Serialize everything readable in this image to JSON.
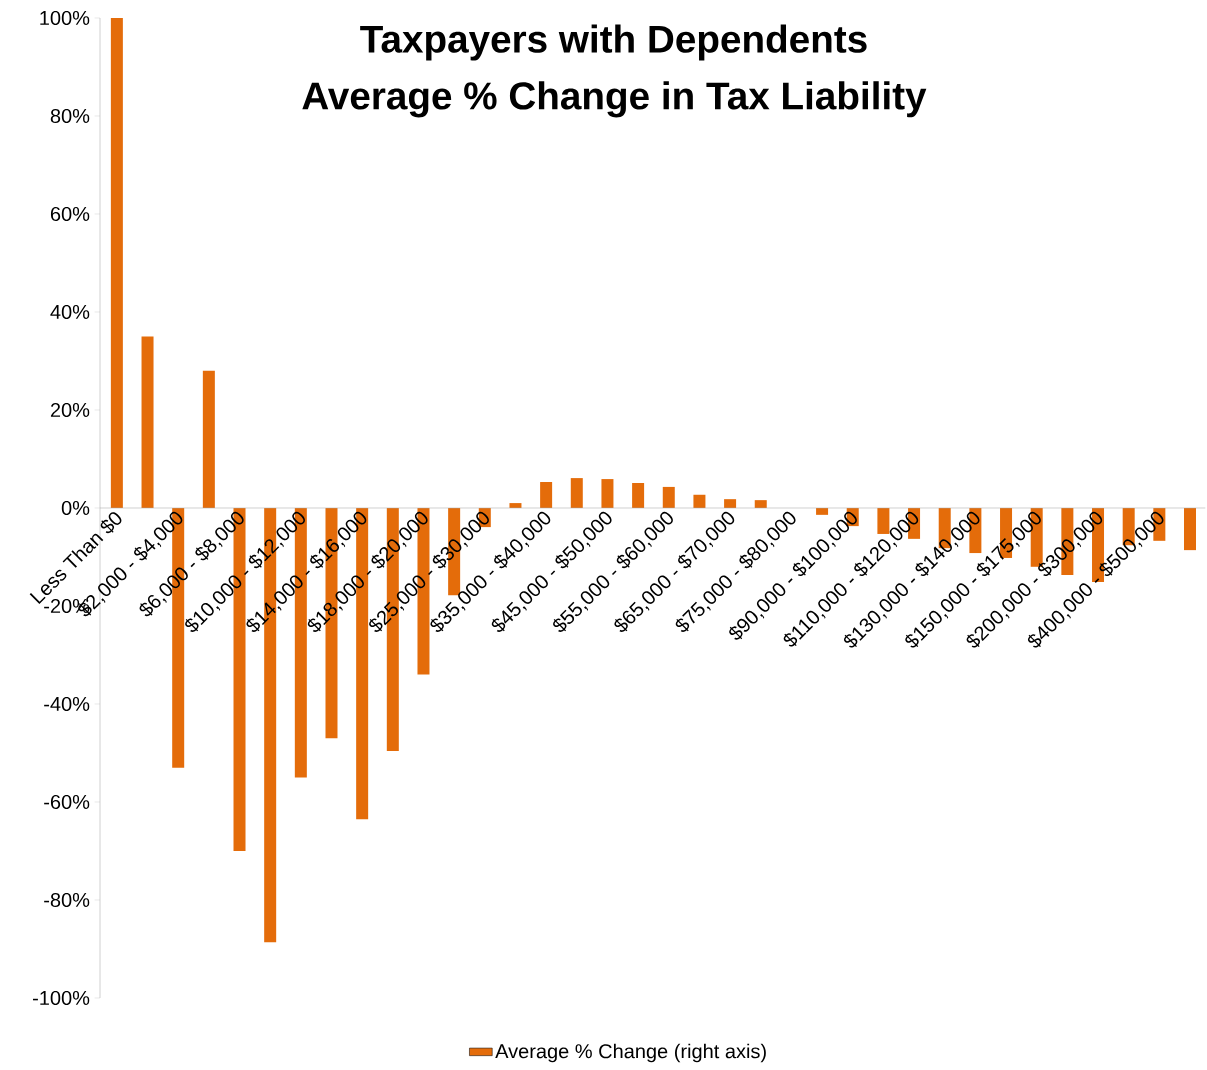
{
  "chart_data": {
    "type": "bar",
    "title": "Taxpayers with Dependents",
    "subtitle": "Average % Change in Tax Liability",
    "categories": [
      "Less Than $0",
      null,
      "$2,000 - $4,000",
      null,
      "$6,000 - $8,000",
      null,
      "$10,000 - $12,000",
      null,
      "$14,000 - $16,000",
      null,
      "$18,000 - $20,000",
      null,
      "$25,000 - $30,000",
      null,
      "$35,000 - $40,000",
      null,
      "$45,000 - $50,000",
      null,
      "$55,000 - $60,000",
      null,
      "$65,000 - $70,000",
      null,
      "$75,000 - $80,000",
      null,
      "$90,000 - $100,000",
      null,
      "$110,000 - $120,000",
      null,
      "$130,000 - $140,000",
      null,
      "$150,000 - $175,000",
      null,
      "$200,000 - $300,000",
      null,
      "$400,000 - $500,000",
      null
    ],
    "series": [
      {
        "name": "Average % Change (right axis)",
        "color": "#e46c0a",
        "values": [
          100,
          35,
          -53,
          28,
          -70,
          -88.6,
          -55,
          -47,
          -63.5,
          -49.6,
          -34,
          -17.8,
          -3.9,
          1,
          5.3,
          6.1,
          5.9,
          5.1,
          4.3,
          2.7,
          1.8,
          1.6,
          0,
          -1.4,
          -3.7,
          -5.3,
          -6.3,
          -8.2,
          -9.2,
          -10.2,
          -12,
          -13.7,
          -15.1,
          -7.6,
          -6.7,
          -8.6
        ]
      }
    ],
    "ylim": [
      -100,
      100
    ],
    "yticks": [
      {
        "value": -100,
        "label": "-100%"
      },
      {
        "value": -80,
        "label": "-80%"
      },
      {
        "value": -60,
        "label": "-60%"
      },
      {
        "value": -40,
        "label": "-40%"
      },
      {
        "value": -20,
        "label": "-20%"
      },
      {
        "value": 0,
        "label": "0%"
      },
      {
        "value": 20,
        "label": "20%"
      },
      {
        "value": 40,
        "label": "40%"
      },
      {
        "value": 60,
        "label": "60%"
      },
      {
        "value": 80,
        "label": "80%"
      },
      {
        "value": 100,
        "label": "100%"
      }
    ],
    "legend": "bottom"
  }
}
